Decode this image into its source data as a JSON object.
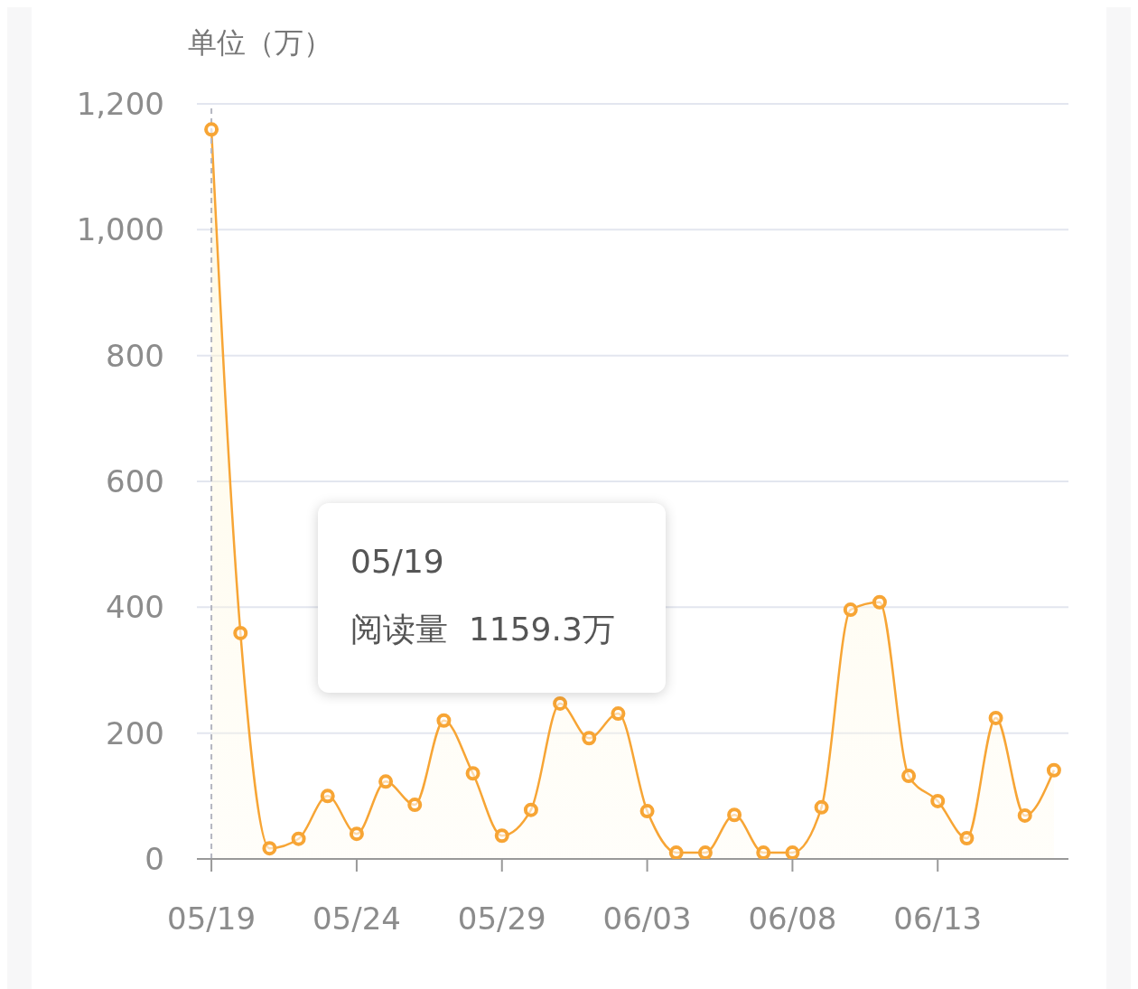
{
  "chart_data": {
    "type": "area",
    "ylabel": "单位（万）",
    "categories": [
      "05/19",
      null,
      null,
      null,
      null,
      "05/24",
      null,
      null,
      null,
      null,
      "05/29",
      null,
      null,
      null,
      null,
      "06/03",
      null,
      null,
      null,
      null,
      "06/08",
      null,
      null,
      null,
      null,
      "06/13",
      null,
      null,
      null,
      null
    ],
    "values": [
      1159.3,
      359,
      17,
      32,
      100,
      40,
      123,
      86,
      220,
      136,
      37,
      78,
      247,
      192,
      231,
      76,
      10,
      10,
      70,
      10,
      10,
      82,
      396,
      408,
      132,
      92,
      33,
      224,
      69,
      141
    ],
    "color": "#f7a535",
    "marker": "circle",
    "grid": "y",
    "ylim": [
      0,
      1200
    ],
    "yticks": [
      0,
      {
        "value": 200,
        "label": "200"
      },
      {
        "value": 400,
        "label": "400"
      },
      {
        "value": 600,
        "label": "600"
      },
      {
        "value": 800,
        "label": "800"
      },
      {
        "value": 1000,
        "label": "1,000"
      },
      {
        "value": 1200,
        "label": "1,200"
      }
    ],
    "ref_lines": [
      {
        "axis": "x",
        "value": "05/19",
        "color": "#b4b6c0",
        "line_style": "dashed"
      }
    ],
    "annotations": [
      "05/19",
      "阅读量  1159.3万"
    ]
  }
}
